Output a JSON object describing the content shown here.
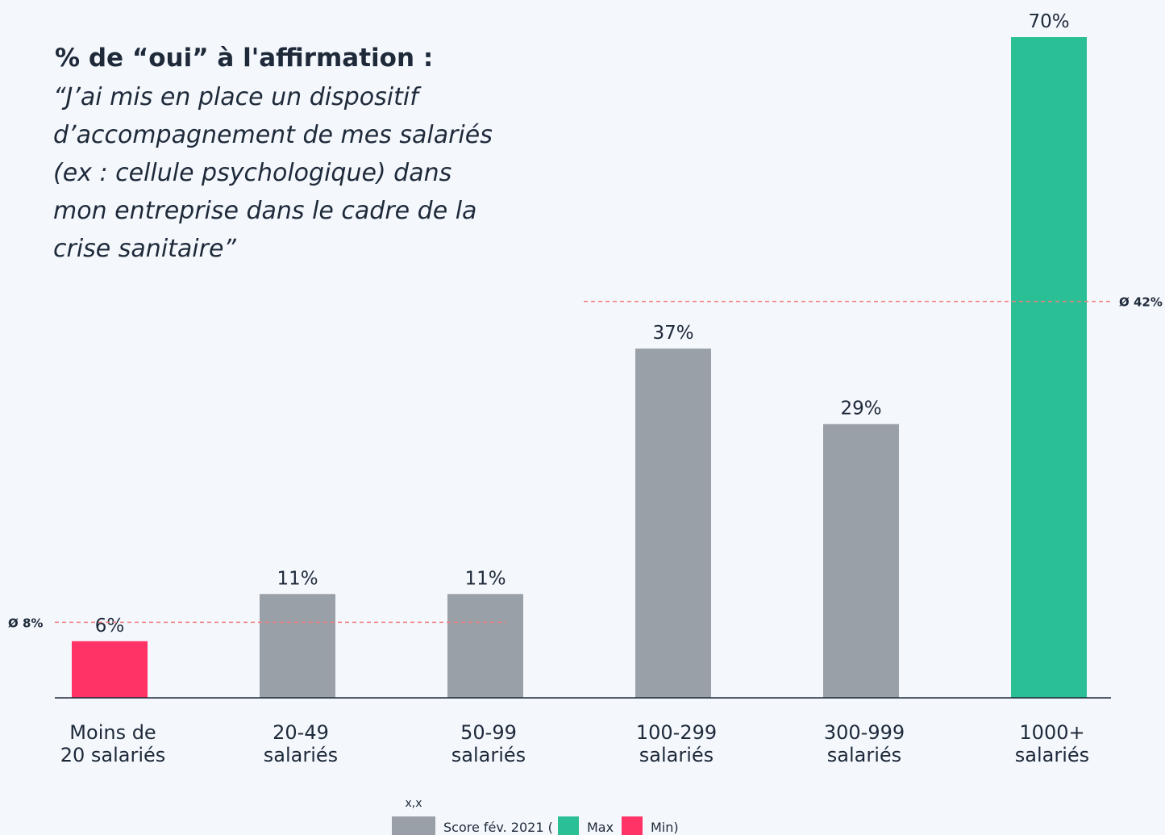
{
  "chart_data": {
    "type": "bar",
    "title": "% de “oui” à l'affirmation :",
    "subtitle": [
      "“J’ai mis en place un dispositif",
      "d’accompagnement de mes salariés",
      "(ex : cellule psychologique) dans",
      "mon entreprise dans le cadre de la",
      "crise sanitaire”"
    ],
    "categories": [
      [
        "Moins de",
        "20 salariés"
      ],
      [
        "20-49",
        "salariés"
      ],
      [
        "50-99",
        "salariés"
      ],
      [
        "100-299",
        "salariés"
      ],
      [
        "300-999",
        "salariés"
      ],
      [
        "1000+",
        "salariés"
      ]
    ],
    "values": [
      6,
      11,
      11,
      37,
      29,
      70
    ],
    "value_labels": [
      "6%",
      "11%",
      "11%",
      "37%",
      "29%",
      "70%"
    ],
    "colors": [
      "#ff3366",
      "#9aa0a8",
      "#9aa0a8",
      "#9aa0a8",
      "#9aa0a8",
      "#2bbf96"
    ],
    "ylim": [
      0,
      70
    ],
    "reference_lines": [
      {
        "value": 8,
        "label": "Ø 8%"
      },
      {
        "value": 42,
        "label": "Ø 42%"
      }
    ],
    "legend_note": "x,x",
    "legend": [
      {
        "label": "Score fév. 2021 (",
        "color": "#9aa0a8"
      },
      {
        "label": "Max",
        "color": "#2bbf96"
      },
      {
        "label": "Min)",
        "color": "#ff3366"
      }
    ]
  }
}
